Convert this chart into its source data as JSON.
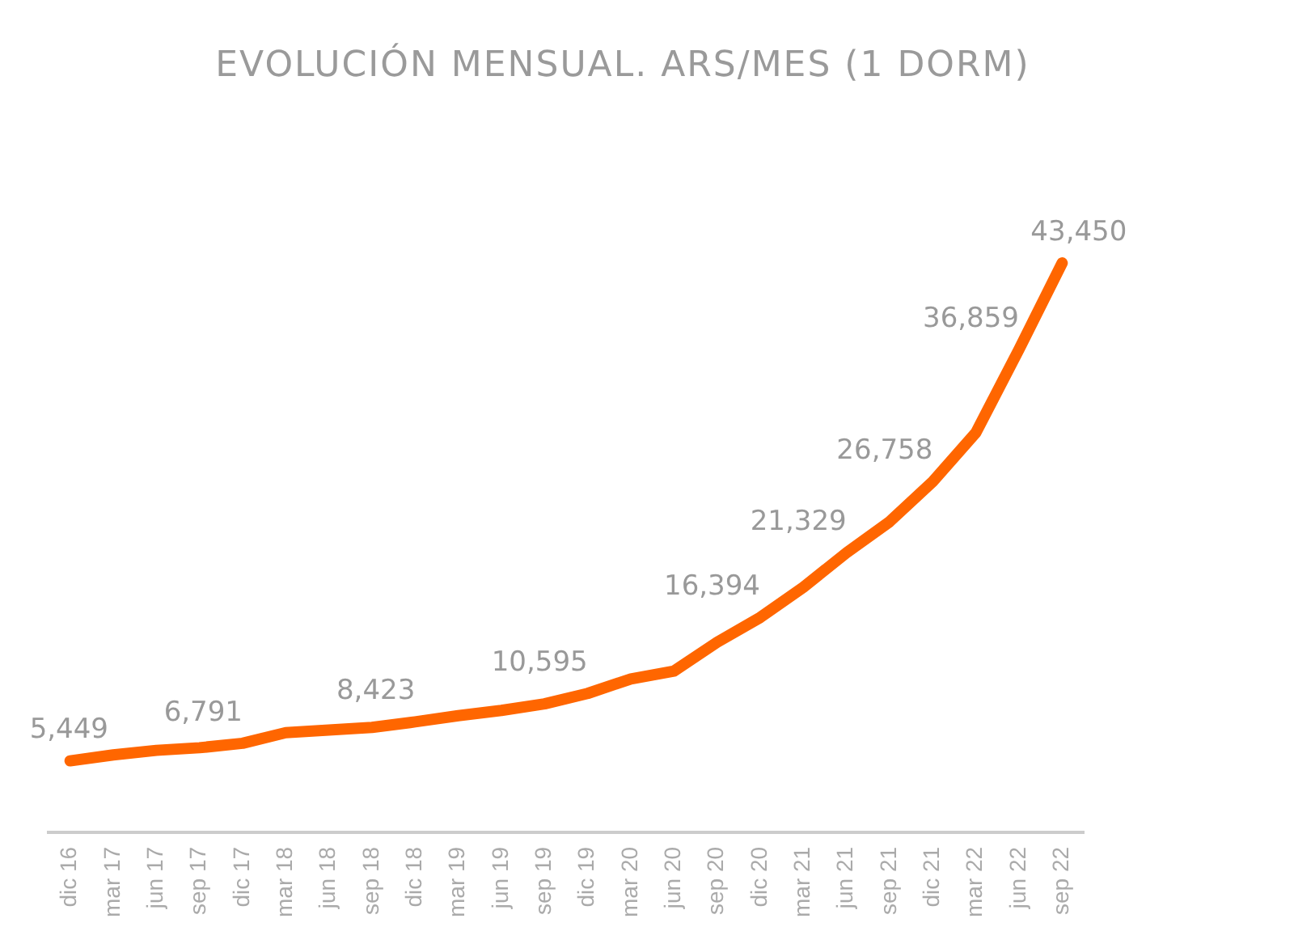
{
  "chart_data": {
    "type": "line",
    "title": "EVOLUCIÓN MENSUAL. ARS/MES (1 DORM)",
    "categories": [
      "dic 16",
      "mar 17",
      "jun 17",
      "sep 17",
      "dic 17",
      "mar 18",
      "jun 18",
      "sep 18",
      "dic 18",
      "mar 19",
      "jun 19",
      "sep 19",
      "dic 19",
      "mar 20",
      "jun 20",
      "sep 20",
      "dic 20",
      "mar 21",
      "jun 21",
      "sep 21",
      "dic 21",
      "mar 22",
      "jun 22",
      "sep 22"
    ],
    "series": [
      {
        "color": "#ff6600",
        "values": [
          5449,
          5900,
          6250,
          6450,
          6791,
          7600,
          7800,
          8000,
          8423,
          8900,
          9300,
          9800,
          10595,
          11700,
          12300,
          14500,
          16394,
          18700,
          21329,
          23700,
          26758,
          30500,
          36859,
          43450
        ],
        "value_labels": [
          "5,449",
          null,
          null,
          null,
          "6,791",
          null,
          null,
          null,
          "8,423",
          null,
          null,
          null,
          "10,595",
          null,
          null,
          null,
          "16,394",
          null,
          "21,329",
          null,
          "26,758",
          null,
          "36,859",
          "43,450"
        ]
      }
    ],
    "tick_labels": "x",
    "grid": false,
    "legend": false,
    "marker": "none",
    "line_style": "solid"
  }
}
